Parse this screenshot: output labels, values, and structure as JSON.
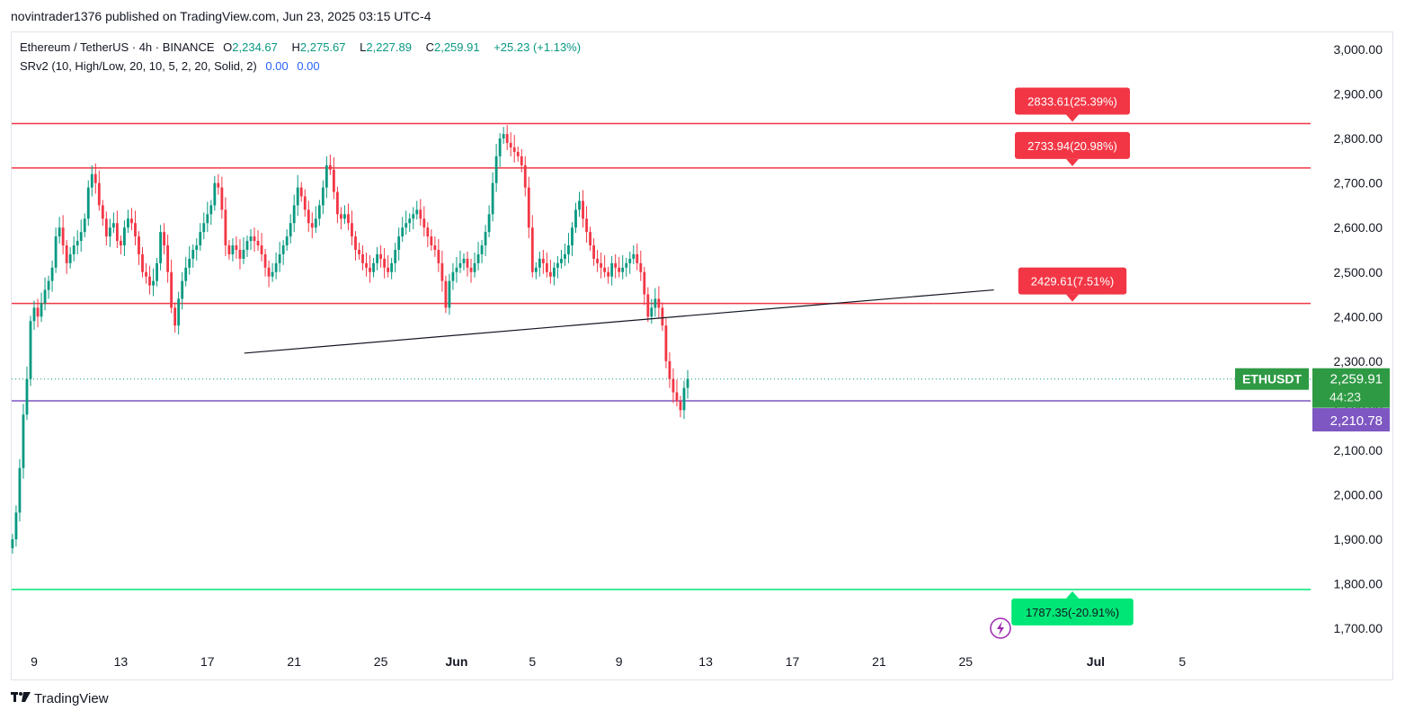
{
  "header": {
    "published_by": "novintrader1376 published on TradingView.com, Jun 23, 2025 03:15 UTC-4"
  },
  "legend": {
    "symbol": "Ethereum / TetherUS · 4h · BINANCE",
    "open_label": "O",
    "open": "2,234.67",
    "high_label": "H",
    "high": "2,275.67",
    "low_label": "L",
    "low": "2,227.89",
    "close_label": "C",
    "close": "2,259.91",
    "change": "+25.23 (+1.13%)",
    "indicator": "SRv2 (10, High/Low, 20, 10, 5, 2, 20, Solid, 2)",
    "ind_val1": "0.00",
    "ind_val2": "0.00"
  },
  "footer": {
    "brand": "TradingView"
  },
  "colors": {
    "up": "#089981",
    "down": "#f23645",
    "resistance": "#f23645",
    "support_purple": "#7e57c2",
    "target_green": "#00e676",
    "price_tag": "#2e9a44"
  },
  "chart_data": {
    "type": "candlestick",
    "title": "",
    "ylim": [
      1650,
      3050
    ],
    "y_ticks": [
      "3,000.00",
      "2,900.00",
      "2,800.00",
      "2,700.00",
      "2,600.00",
      "2,500.00",
      "2,400.00",
      "2,300.00",
      "2,200.00",
      "2,100.00",
      "2,000.00",
      "1,900.00",
      "1,800.00",
      "1,700.00"
    ],
    "x_ticks": [
      "9",
      "13",
      "17",
      "21",
      "25",
      "Jun",
      "5",
      "9",
      "13",
      "17",
      "21",
      "25",
      "Jul",
      "5"
    ],
    "x_tick_days": [
      0,
      4,
      8,
      12,
      16,
      19.5,
      23,
      27,
      31,
      35,
      39,
      43,
      49,
      53
    ],
    "candles_per_day": 6,
    "closes_approx": [
      1900,
      1960,
      2060,
      2180,
      2260,
      2390,
      2420,
      2400,
      2430,
      2460,
      2480,
      2510,
      2580,
      2600,
      2560,
      2520,
      2540,
      2560,
      2570,
      2590,
      2620,
      2690,
      2720,
      2700,
      2650,
      2620,
      2580,
      2600,
      2610,
      2570,
      2560,
      2600,
      2620,
      2610,
      2580,
      2540,
      2500,
      2490,
      2470,
      2480,
      2520,
      2590,
      2560,
      2500,
      2420,
      2380,
      2440,
      2480,
      2510,
      2530,
      2550,
      2560,
      2590,
      2610,
      2630,
      2650,
      2700,
      2690,
      2640,
      2560,
      2540,
      2560,
      2550,
      2530,
      2550,
      2570,
      2580,
      2570,
      2560,
      2540,
      2510,
      2490,
      2500,
      2520,
      2540,
      2560,
      2580,
      2610,
      2650,
      2690,
      2670,
      2640,
      2610,
      2600,
      2620,
      2650,
      2690,
      2740,
      2730,
      2680,
      2630,
      2620,
      2630,
      2610,
      2580,
      2550,
      2540,
      2520,
      2510,
      2500,
      2520,
      2540,
      2530,
      2510,
      2500,
      2520,
      2550,
      2580,
      2600,
      2610,
      2620,
      2630,
      2640,
      2620,
      2600,
      2580,
      2560,
      2550,
      2520,
      2480,
      2420,
      2480,
      2500,
      2510,
      2520,
      2530,
      2510,
      2500,
      2520,
      2540,
      2560,
      2590,
      2630,
      2700,
      2760,
      2800,
      2810,
      2790,
      2780,
      2770,
      2760,
      2740,
      2690,
      2600,
      2500,
      2510,
      2530,
      2520,
      2500,
      2490,
      2510,
      2520,
      2530,
      2540,
      2560,
      2600,
      2640,
      2660,
      2620,
      2590,
      2560,
      2530,
      2520,
      2510,
      2500,
      2490,
      2520,
      2510,
      2500,
      2510,
      2520,
      2530,
      2540,
      2520,
      2500,
      2450,
      2400,
      2420,
      2440,
      2420,
      2380,
      2300,
      2260,
      2230,
      2210,
      2190,
      2240,
      2260
    ],
    "current_price": "2,259.91",
    "current_symbol": "ETHUSDT",
    "countdown": "44:23",
    "levels": [
      {
        "price": 2833.61,
        "label": "2833.61(25.39%)",
        "color": "#f23645"
      },
      {
        "price": 2733.94,
        "label": "2733.94(20.98%)",
        "color": "#f23645"
      },
      {
        "price": 2429.61,
        "label": "2429.61(7.51%)",
        "color": "#f23645"
      },
      {
        "price": 1787.35,
        "label": "1787.35(-20.91%)",
        "color": "#00e676"
      }
    ],
    "support_line": {
      "price": 2210.78,
      "label": "2,210.78",
      "color": "#7e57c2"
    },
    "trendline": {
      "from": {
        "day": 9.7,
        "price": 2318
      },
      "to": {
        "day": 44.3,
        "price": 2460
      }
    }
  }
}
